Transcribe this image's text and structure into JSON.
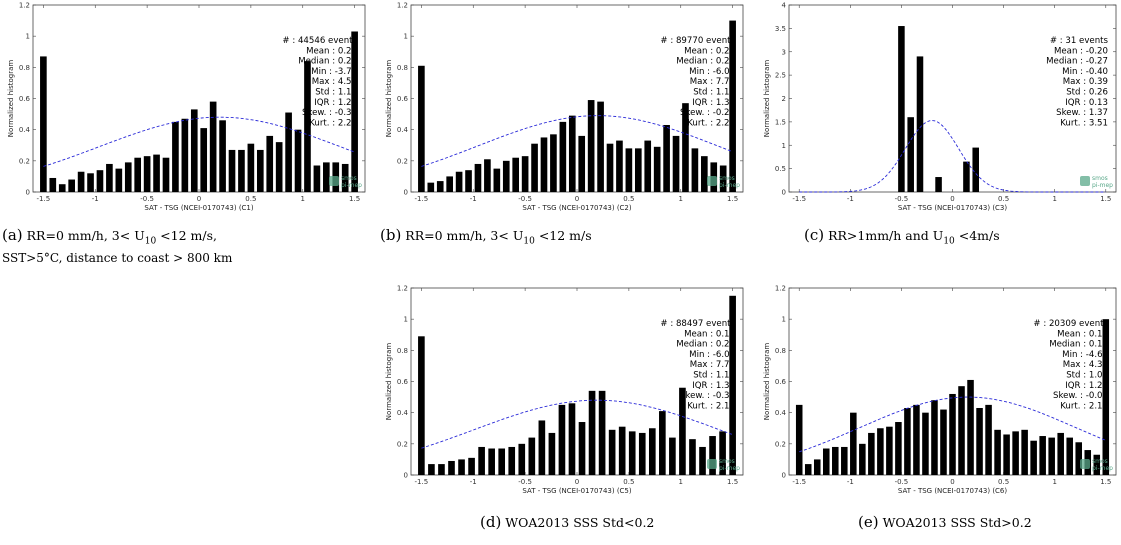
{
  "chart_data": [
    {
      "type": "bar",
      "panel": "a",
      "xlabel": "SAT - TSG (NCEI-0170743) (C1)",
      "ylabel": "Normalized histogram",
      "xlim": [
        -1.6,
        1.6
      ],
      "ylim": [
        0,
        1.2
      ],
      "xticks": [
        "-1.5",
        "-1",
        "-0.5",
        "0",
        "0.5",
        "1",
        "1.5"
      ],
      "yticks": [
        "0",
        "0.2",
        "0.4",
        "0.6",
        "0.8",
        "1",
        "1.2"
      ],
      "bin_start": -1.5,
      "bin_width": 0.1,
      "values": [
        0.87,
        0.09,
        0.05,
        0.08,
        0.13,
        0.12,
        0.14,
        0.18,
        0.15,
        0.19,
        0.22,
        0.23,
        0.24,
        0.22,
        0.45,
        0.47,
        0.53,
        0.41,
        0.58,
        0.46,
        0.27,
        0.27,
        0.31,
        0.27,
        0.36,
        0.32,
        0.51,
        0.4,
        0.84,
        0.17,
        0.19,
        0.19,
        0.18,
        1.03
      ],
      "fit": {
        "mean": 0.2,
        "std": 1.16,
        "peak": 0.48
      },
      "stats": [
        "# : 44546 events",
        "Mean : 0.20",
        "Median : 0.21",
        "Min : -3.76",
        "Max : 4.51",
        "Std : 1.16",
        "IQR : 1.29",
        "Skew. : -0.37",
        "Kurt. : 2.23"
      ],
      "logo": [
        "smos",
        "pi-mep"
      ],
      "caption": {
        "label": "(a)",
        "line1": "RR=0 mm/h, 3< U10 <12 m/s,",
        "line2": "SST>5°C, distance to coast > 800 km"
      }
    },
    {
      "type": "bar",
      "panel": "b",
      "xlabel": "SAT - TSG (NCEI-0170743) (C2)",
      "ylabel": "Normalized histogram",
      "xlim": [
        -1.6,
        1.6
      ],
      "ylim": [
        0,
        1.2
      ],
      "xticks": [
        "-1.5",
        "-1",
        "-0.5",
        "0",
        "0.5",
        "1",
        "1.5"
      ],
      "yticks": [
        "0",
        "0.2",
        "0.4",
        "0.6",
        "0.8",
        "1",
        "1.2"
      ],
      "bin_start": -1.5,
      "bin_width": 0.1,
      "values": [
        0.81,
        0.06,
        0.07,
        0.1,
        0.13,
        0.14,
        0.18,
        0.21,
        0.15,
        0.2,
        0.22,
        0.23,
        0.31,
        0.35,
        0.37,
        0.45,
        0.49,
        0.36,
        0.59,
        0.58,
        0.31,
        0.33,
        0.28,
        0.28,
        0.33,
        0.29,
        0.43,
        0.36,
        0.57,
        0.28,
        0.23,
        0.19,
        0.17,
        1.1
      ],
      "fit": {
        "mean": 0.2,
        "std": 1.15,
        "peak": 0.49
      },
      "stats": [
        "# : 89770 events",
        "Mean : 0.20",
        "Median : 0.20",
        "Min : -6.02",
        "Max : 7.71",
        "Std : 1.15",
        "IQR : 1.31",
        "Skew. : -0.29",
        "Kurt. : 2.21"
      ],
      "logo": [
        "smos",
        "pi-mep"
      ],
      "caption": {
        "label": "(b)",
        "line1": "RR=0 mm/h, 3< U10 <12 m/s",
        "line2": ""
      }
    },
    {
      "type": "bar",
      "panel": "c",
      "xlabel": "SAT - TSG (NCEI-0170743) (C3)",
      "ylabel": "Normalized histogram",
      "xlim": [
        -1.6,
        1.6
      ],
      "ylim": [
        0,
        4
      ],
      "xticks": [
        "-1.5",
        "-1",
        "-0.5",
        "0",
        "0.5",
        "1",
        "1.5"
      ],
      "yticks": [
        "0",
        "0.5",
        "1",
        "1.5",
        "2",
        "2.5",
        "3",
        "3.5",
        "4"
      ],
      "bin_start": -1.5,
      "bin_width": 0.1,
      "values": [
        0,
        0,
        0,
        0,
        0,
        0,
        0,
        0,
        0,
        0,
        0,
        3.55,
        1.6,
        2.9,
        0,
        0.32,
        0,
        0,
        0.65,
        0.95,
        0,
        0,
        0,
        0,
        0,
        0,
        0,
        0,
        0,
        0,
        0,
        0,
        0,
        0
      ],
      "fit": {
        "mean": -0.2,
        "std": 0.26,
        "peak": 1.53
      },
      "stats": [
        "# : 31 events",
        "Mean : -0.20",
        "Median : -0.27",
        "Min : -0.40",
        "Max : 0.39",
        "Std : 0.26",
        "IQR : 0.13",
        "Skew. : 1.37",
        "Kurt. : 3.51"
      ],
      "logo": [
        "smos",
        "pi-mep"
      ],
      "caption": {
        "label": "(c)",
        "line1": "RR>1mm/h and U10 <4m/s",
        "line2": ""
      }
    },
    {
      "type": "bar",
      "panel": "d",
      "xlabel": "SAT - TSG (NCEI-0170743) (C5)",
      "ylabel": "Normalized histogram",
      "xlim": [
        -1.6,
        1.6
      ],
      "ylim": [
        0,
        1.2
      ],
      "xticks": [
        "-1.5",
        "-1",
        "-0.5",
        "0",
        "0.5",
        "1",
        "1.5"
      ],
      "yticks": [
        "0",
        "0.2",
        "0.4",
        "0.6",
        "0.8",
        "1",
        "1.2"
      ],
      "bin_start": -1.5,
      "bin_width": 0.1,
      "values": [
        0.89,
        0.07,
        0.07,
        0.09,
        0.1,
        0.11,
        0.18,
        0.17,
        0.17,
        0.18,
        0.2,
        0.24,
        0.35,
        0.27,
        0.45,
        0.46,
        0.34,
        0.54,
        0.54,
        0.29,
        0.31,
        0.28,
        0.27,
        0.3,
        0.41,
        0.24,
        0.56,
        0.23,
        0.18,
        0.25,
        0.28,
        1.15
      ],
      "fit": {
        "mean": 0.19,
        "std": 1.18,
        "peak": 0.48
      },
      "stats": [
        "# : 88497 events",
        "Mean : 0.19",
        "Median : 0.21",
        "Min : -6.02",
        "Max : 7.71",
        "Std : 1.18",
        "IQR : 1.35",
        "Skew. : -0.31",
        "Kurt. : 2.15"
      ],
      "logo": [
        "smos",
        "pi-mep"
      ],
      "caption": {
        "label": "(d)",
        "line1": "WOA2013 SSS Std<0.2",
        "line2": ""
      }
    },
    {
      "type": "bar",
      "panel": "e",
      "xlabel": "SAT - TSG (NCEI-0170743) (C6)",
      "ylabel": "Normalized histogram",
      "xlim": [
        -1.6,
        1.6
      ],
      "ylim": [
        0,
        1.2
      ],
      "xticks": [
        "-1.5",
        "-1",
        "-0.5",
        "0",
        "0.5",
        "1",
        "1.5"
      ],
      "yticks": [
        "0",
        "0.2",
        "0.4",
        "0.6",
        "0.8",
        "1",
        "1.2"
      ],
      "bin_start": -1.5,
      "bin_width": 0.1,
      "values": [
        0.45,
        0.07,
        0.1,
        0.17,
        0.18,
        0.18,
        0.4,
        0.2,
        0.27,
        0.3,
        0.31,
        0.34,
        0.43,
        0.45,
        0.4,
        0.48,
        0.42,
        0.52,
        0.57,
        0.61,
        0.43,
        0.45,
        0.29,
        0.26,
        0.28,
        0.29,
        0.22,
        0.25,
        0.24,
        0.27,
        0.24,
        0.21,
        0.16,
        0.13,
        1.0
      ],
      "fit": {
        "mean": 0.15,
        "std": 1.06,
        "peak": 0.5
      },
      "stats": [
        "# : 20309 events",
        "Mean : 0.15",
        "Median : 0.10",
        "Min : -4.60",
        "Max : 4.39",
        "Std : 1.06",
        "IQR : 1.26",
        "Skew. : -0.01",
        "Kurt. : 2.15"
      ],
      "logo": [
        "smos",
        "pi-mep"
      ],
      "caption": {
        "label": "(e)",
        "line1": "WOA2013 SSS Std>0.2",
        "line2": ""
      }
    }
  ],
  "colors": {
    "bar": "#000000",
    "fit": "#2a2ad8",
    "axis": "#444444",
    "logo": "#5aa88a"
  }
}
